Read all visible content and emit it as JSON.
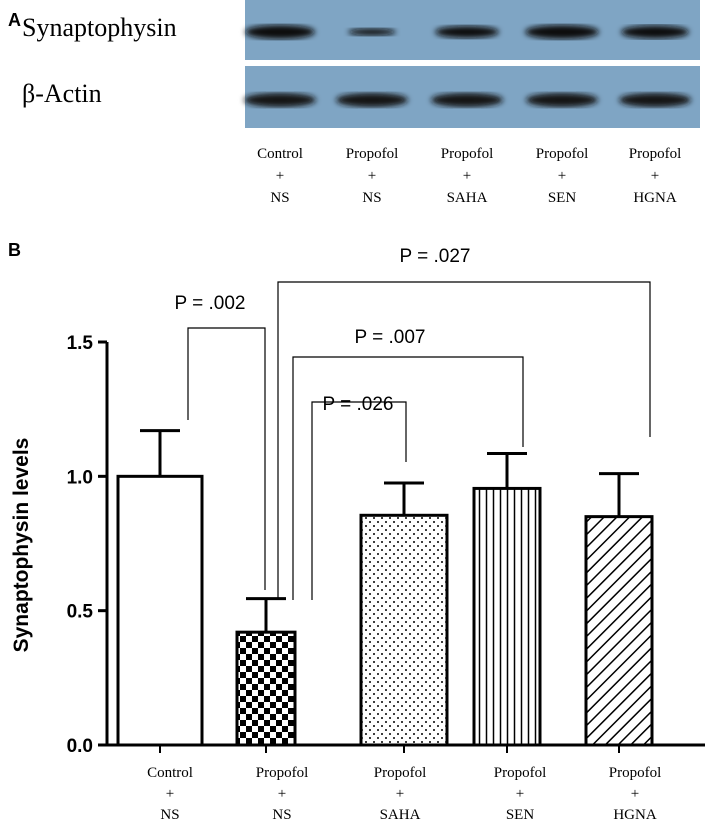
{
  "blot": {
    "panel": "A",
    "rows": [
      "Synaptophysin",
      "β-Actin"
    ],
    "lanes": [
      [
        "Control",
        "+",
        "NS"
      ],
      [
        "Propofol",
        "+",
        "NS"
      ],
      [
        "Propofol",
        "+",
        "SAHA"
      ],
      [
        "Propofol",
        "+",
        "SEN"
      ],
      [
        "Propofol",
        "+",
        "HGNA"
      ]
    ]
  },
  "chart_data": {
    "type": "bar",
    "panel": "B",
    "y_label": "Synaptophysin levels",
    "categories": [
      [
        "Control",
        "+",
        "NS"
      ],
      [
        "Propofol",
        "+",
        "NS"
      ],
      [
        "Propofol",
        "+",
        "SAHA"
      ],
      [
        "Propofol",
        "+",
        "SEN"
      ],
      [
        "Propofol",
        "+",
        "HGNA"
      ]
    ],
    "values": [
      1.0,
      0.42,
      0.855,
      0.955,
      0.85
    ],
    "errors": [
      0.17,
      0.125,
      0.12,
      0.13,
      0.16
    ],
    "patterns": [
      "none",
      "checker",
      "dots",
      "vertical",
      "diagonal"
    ],
    "ylim": [
      0,
      1.5
    ],
    "yticks": [
      {
        "value": 0,
        "label": "0.0"
      },
      0.5,
      {
        "value": 1,
        "label": "1.0"
      },
      1.5
    ],
    "comparisons": [
      {
        "groups": [
          0,
          1
        ],
        "label": "P = .002"
      },
      {
        "groups": [
          1,
          4
        ],
        "label": "P = .027"
      },
      {
        "groups": [
          1,
          3
        ],
        "label": "P = .007"
      },
      {
        "groups": [
          1,
          2
        ],
        "label": "P = .026"
      }
    ]
  }
}
